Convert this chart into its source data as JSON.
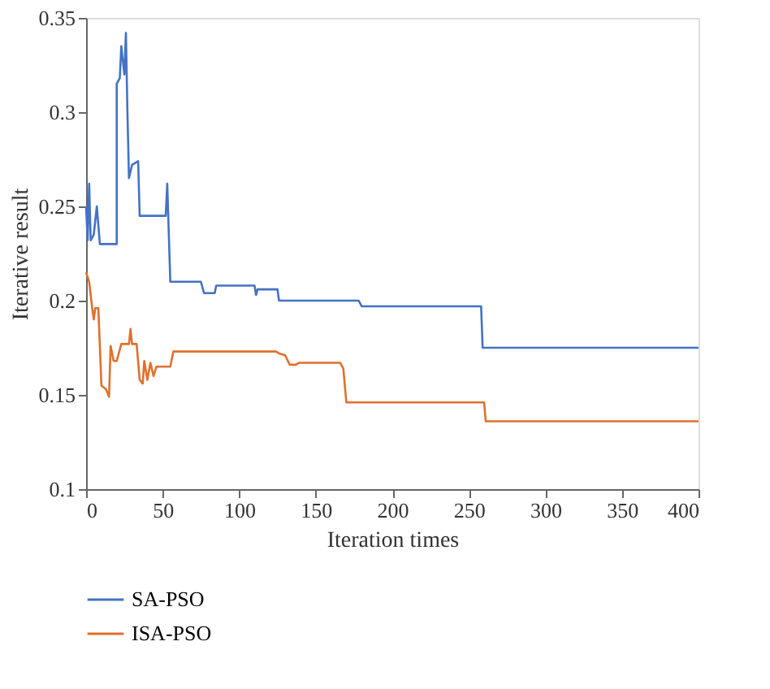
{
  "chart_data": {
    "type": "line",
    "xlabel": "Iteration times",
    "ylabel": "Iterative result",
    "xlim": [
      0,
      400
    ],
    "xticks": [
      0,
      50,
      100,
      150,
      200,
      250,
      300,
      350,
      400
    ],
    "ylim": [
      0.1,
      0.35
    ],
    "yticks": [
      0.1,
      0.15,
      0.2,
      0.25,
      0.3,
      0.35
    ],
    "grid": false,
    "legend": "bottom",
    "marker": "none",
    "line_style": "solid",
    "series": [
      {
        "name": "SA-PSO",
        "color": "#4472c4",
        "x": [
          0,
          1,
          2,
          3,
          5,
          7,
          9,
          20,
          20,
          22,
          23,
          25,
          26,
          27,
          28,
          30,
          34,
          35,
          52,
          53,
          55,
          75,
          77,
          84,
          85,
          110,
          111,
          112,
          125,
          126,
          178,
          180,
          258,
          259,
          400
        ],
        "values": [
          0.25,
          0.232,
          0.262,
          0.232,
          0.235,
          0.25,
          0.23,
          0.23,
          0.315,
          0.318,
          0.335,
          0.32,
          0.342,
          0.3,
          0.265,
          0.272,
          0.274,
          0.245,
          0.245,
          0.262,
          0.21,
          0.21,
          0.204,
          0.204,
          0.208,
          0.208,
          0.203,
          0.206,
          0.206,
          0.2,
          0.2,
          0.197,
          0.197,
          0.175,
          0.175
        ]
      },
      {
        "name": "ISA-PSO",
        "color": "#e0702e",
        "x": [
          0,
          2,
          4,
          5,
          6,
          8,
          10,
          13,
          15,
          16,
          18,
          20,
          23,
          28,
          29,
          30,
          33,
          35,
          37,
          38,
          40,
          42,
          44,
          46,
          55,
          57,
          124,
          126,
          130,
          133,
          137,
          139,
          166,
          168,
          170,
          260,
          261,
          400
        ],
        "values": [
          0.215,
          0.21,
          0.196,
          0.19,
          0.196,
          0.196,
          0.155,
          0.153,
          0.149,
          0.176,
          0.168,
          0.168,
          0.177,
          0.177,
          0.185,
          0.177,
          0.177,
          0.158,
          0.156,
          0.168,
          0.158,
          0.167,
          0.16,
          0.165,
          0.165,
          0.173,
          0.173,
          0.172,
          0.171,
          0.166,
          0.166,
          0.167,
          0.167,
          0.164,
          0.146,
          0.146,
          0.136,
          0.136
        ]
      }
    ]
  }
}
